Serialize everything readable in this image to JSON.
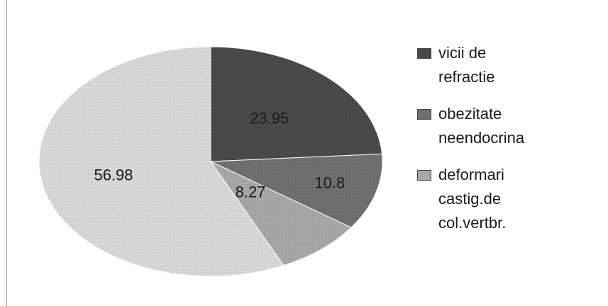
{
  "chart_data": {
    "type": "pie",
    "categories": [
      "vicii de refractie",
      "obezitate neendocrina",
      "deformari castig.de col.vertbr.",
      ""
    ],
    "values": [
      23.95,
      10.8,
      8.27,
      56.98
    ],
    "data_labels": [
      "23.95",
      "10.8",
      "8.27",
      "56.98"
    ],
    "colors": [
      "#4a4a4a",
      "#707070",
      "#a8a8a8",
      "#d9d9d9"
    ],
    "legend_position": "right",
    "legend": [
      {
        "line1": "vicii de",
        "line2": "refractie",
        "line3": ""
      },
      {
        "line1": "obezitate",
        "line2": "neendocrina",
        "line3": ""
      },
      {
        "line1": "deformari",
        "line2": "castig.de",
        "line3": "col.vertbr."
      }
    ]
  }
}
